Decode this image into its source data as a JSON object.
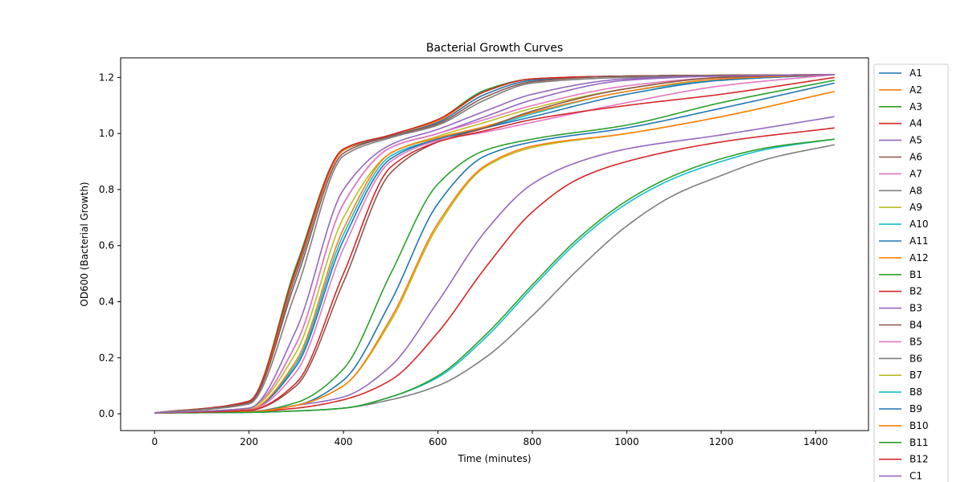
{
  "chart_data": {
    "type": "line",
    "title": "Bacterial Growth Curves",
    "xlabel": "Time (minutes)",
    "ylabel": "OD600 (Bacterial Growth)",
    "xlim": [
      -72,
      1512
    ],
    "ylim": [
      -0.06,
      1.27
    ],
    "xticks": [
      0,
      200,
      400,
      600,
      800,
      1000,
      1200,
      1400
    ],
    "yticks": [
      0.0,
      0.2,
      0.4,
      0.6,
      0.8,
      1.0,
      1.2
    ],
    "grid": false,
    "legend_position": "outside right",
    "x_range": [
      0,
      1440
    ],
    "series": [
      {
        "name": "A1",
        "color": "#1f77b4",
        "points": [
          [
            0,
            0.003
          ],
          [
            200,
            0.04
          ],
          [
            300,
            0.5
          ],
          [
            400,
            0.94
          ],
          [
            500,
            0.99
          ],
          [
            600,
            1.04
          ],
          [
            700,
            1.14
          ],
          [
            800,
            1.19
          ],
          [
            1000,
            1.205
          ],
          [
            1440,
            1.21
          ]
        ]
      },
      {
        "name": "A2",
        "color": "#ff7f0e",
        "points": [
          [
            0,
            0.003
          ],
          [
            200,
            0.04
          ],
          [
            300,
            0.51
          ],
          [
            400,
            0.94
          ],
          [
            500,
            0.995
          ],
          [
            600,
            1.045
          ],
          [
            700,
            1.15
          ],
          [
            800,
            1.195
          ],
          [
            1000,
            1.205
          ],
          [
            1440,
            1.21
          ]
        ]
      },
      {
        "name": "A3",
        "color": "#2ca02c",
        "points": [
          [
            0,
            0.003
          ],
          [
            200,
            0.045
          ],
          [
            300,
            0.53
          ],
          [
            400,
            0.945
          ],
          [
            500,
            0.995
          ],
          [
            600,
            1.05
          ],
          [
            700,
            1.155
          ],
          [
            800,
            1.195
          ],
          [
            1000,
            1.205
          ],
          [
            1440,
            1.21
          ]
        ]
      },
      {
        "name": "A4",
        "color": "#d62728",
        "points": [
          [
            0,
            0.003
          ],
          [
            200,
            0.045
          ],
          [
            300,
            0.52
          ],
          [
            400,
            0.945
          ],
          [
            500,
            0.995
          ],
          [
            600,
            1.05
          ],
          [
            700,
            1.15
          ],
          [
            800,
            1.195
          ],
          [
            1000,
            1.205
          ],
          [
            1440,
            1.21
          ]
        ]
      },
      {
        "name": "A5",
        "color": "#9467bd",
        "points": [
          [
            0,
            0.003
          ],
          [
            200,
            0.02
          ],
          [
            300,
            0.25
          ],
          [
            400,
            0.75
          ],
          [
            500,
            0.95
          ],
          [
            600,
            1.0
          ],
          [
            700,
            1.06
          ],
          [
            800,
            1.12
          ],
          [
            1000,
            1.19
          ],
          [
            1200,
            1.205
          ],
          [
            1440,
            1.21
          ]
        ]
      },
      {
        "name": "A6",
        "color": "#8c564b",
        "points": [
          [
            0,
            0.003
          ],
          [
            200,
            0.04
          ],
          [
            300,
            0.48
          ],
          [
            400,
            0.93
          ],
          [
            500,
            0.99
          ],
          [
            600,
            1.035
          ],
          [
            700,
            1.13
          ],
          [
            800,
            1.185
          ],
          [
            1000,
            1.205
          ],
          [
            1440,
            1.21
          ]
        ]
      },
      {
        "name": "A7",
        "color": "#e377c2",
        "points": [
          [
            0,
            0.003
          ],
          [
            200,
            0.02
          ],
          [
            300,
            0.25
          ],
          [
            400,
            0.75
          ],
          [
            500,
            0.95
          ],
          [
            600,
            1.0
          ],
          [
            700,
            1.05
          ],
          [
            800,
            1.1
          ],
          [
            1000,
            1.17
          ],
          [
            1200,
            1.2
          ],
          [
            1440,
            1.21
          ]
        ]
      },
      {
        "name": "A8",
        "color": "#7f7f7f",
        "points": [
          [
            0,
            0.003
          ],
          [
            200,
            0.035
          ],
          [
            300,
            0.44
          ],
          [
            400,
            0.92
          ],
          [
            500,
            0.985
          ],
          [
            600,
            1.03
          ],
          [
            700,
            1.12
          ],
          [
            800,
            1.18
          ],
          [
            1000,
            1.2
          ],
          [
            1440,
            1.21
          ]
        ]
      },
      {
        "name": "A9",
        "color": "#bcbd22",
        "points": [
          [
            0,
            0.003
          ],
          [
            200,
            0.02
          ],
          [
            300,
            0.22
          ],
          [
            400,
            0.7
          ],
          [
            500,
            0.93
          ],
          [
            600,
            0.99
          ],
          [
            700,
            1.04
          ],
          [
            800,
            1.09
          ],
          [
            1000,
            1.16
          ],
          [
            1200,
            1.2
          ],
          [
            1440,
            1.21
          ]
        ]
      },
      {
        "name": "A10",
        "color": "#17becf",
        "points": [
          [
            0,
            0.003
          ],
          [
            200,
            0.015
          ],
          [
            300,
            0.18
          ],
          [
            400,
            0.64
          ],
          [
            500,
            0.92
          ],
          [
            600,
            0.98
          ],
          [
            700,
            1.02
          ],
          [
            800,
            1.07
          ],
          [
            1000,
            1.15
          ],
          [
            1200,
            1.19
          ],
          [
            1440,
            1.21
          ]
        ]
      },
      {
        "name": "A11",
        "color": "#1f77b4",
        "points": [
          [
            0,
            0.003
          ],
          [
            200,
            0.015
          ],
          [
            300,
            0.17
          ],
          [
            400,
            0.62
          ],
          [
            500,
            0.91
          ],
          [
            600,
            0.98
          ],
          [
            700,
            1.02
          ],
          [
            800,
            1.06
          ],
          [
            1000,
            1.14
          ],
          [
            1200,
            1.19
          ],
          [
            1440,
            1.21
          ]
        ]
      },
      {
        "name": "A12",
        "color": "#ff7f0e",
        "points": [
          [
            0,
            0.003
          ],
          [
            200,
            0.015
          ],
          [
            300,
            0.19
          ],
          [
            400,
            0.66
          ],
          [
            500,
            0.93
          ],
          [
            600,
            0.985
          ],
          [
            700,
            1.025
          ],
          [
            800,
            1.075
          ],
          [
            1000,
            1.15
          ],
          [
            1200,
            1.195
          ],
          [
            1440,
            1.21
          ]
        ]
      },
      {
        "name": "B1",
        "color": "#2ca02c",
        "points": [
          [
            0,
            0.003
          ],
          [
            200,
            0.008
          ],
          [
            300,
            0.04
          ],
          [
            400,
            0.16
          ],
          [
            500,
            0.5
          ],
          [
            600,
            0.82
          ],
          [
            700,
            0.94
          ],
          [
            800,
            0.98
          ],
          [
            1000,
            1.03
          ],
          [
            1200,
            1.11
          ],
          [
            1440,
            1.19
          ]
        ]
      },
      {
        "name": "B2",
        "color": "#d62728",
        "points": [
          [
            0,
            0.003
          ],
          [
            200,
            0.007
          ],
          [
            300,
            0.02
          ],
          [
            400,
            0.05
          ],
          [
            500,
            0.12
          ],
          [
            600,
            0.29
          ],
          [
            700,
            0.52
          ],
          [
            800,
            0.72
          ],
          [
            900,
            0.84
          ],
          [
            1000,
            0.9
          ],
          [
            1200,
            0.97
          ],
          [
            1440,
            1.02
          ]
        ]
      },
      {
        "name": "B3",
        "color": "#9467bd",
        "points": [
          [
            0,
            0.003
          ],
          [
            200,
            0.008
          ],
          [
            300,
            0.03
          ],
          [
            400,
            0.06
          ],
          [
            500,
            0.17
          ],
          [
            600,
            0.4
          ],
          [
            700,
            0.65
          ],
          [
            800,
            0.82
          ],
          [
            900,
            0.9
          ],
          [
            1000,
            0.945
          ],
          [
            1200,
            0.995
          ],
          [
            1440,
            1.06
          ]
        ]
      },
      {
        "name": "B4",
        "color": "#8c564b",
        "points": [
          [
            0,
            0.003
          ],
          [
            200,
            0.012
          ],
          [
            300,
            0.1
          ],
          [
            400,
            0.47
          ],
          [
            500,
            0.86
          ],
          [
            600,
            0.97
          ],
          [
            700,
            1.02
          ],
          [
            800,
            1.08
          ],
          [
            1000,
            1.16
          ],
          [
            1200,
            1.2
          ],
          [
            1440,
            1.21
          ]
        ]
      },
      {
        "name": "B5",
        "color": "#e377c2",
        "points": [
          [
            0,
            0.003
          ],
          [
            200,
            0.013
          ],
          [
            300,
            0.15
          ],
          [
            400,
            0.59
          ],
          [
            500,
            0.9
          ],
          [
            600,
            0.975
          ],
          [
            700,
            1.005
          ],
          [
            800,
            1.04
          ],
          [
            1000,
            1.11
          ],
          [
            1200,
            1.17
          ],
          [
            1440,
            1.21
          ]
        ]
      },
      {
        "name": "B6",
        "color": "#7f7f7f",
        "points": [
          [
            0,
            0.003
          ],
          [
            200,
            0.005
          ],
          [
            300,
            0.01
          ],
          [
            400,
            0.02
          ],
          [
            500,
            0.05
          ],
          [
            600,
            0.1
          ],
          [
            700,
            0.2
          ],
          [
            800,
            0.35
          ],
          [
            900,
            0.52
          ],
          [
            1000,
            0.67
          ],
          [
            1100,
            0.78
          ],
          [
            1200,
            0.85
          ],
          [
            1300,
            0.91
          ],
          [
            1440,
            0.96
          ]
        ]
      },
      {
        "name": "B7",
        "color": "#bcbd22",
        "points": [
          [
            0,
            0.003
          ],
          [
            200,
            0.007
          ],
          [
            300,
            0.03
          ],
          [
            400,
            0.1
          ],
          [
            500,
            0.33
          ],
          [
            600,
            0.67
          ],
          [
            700,
            0.88
          ],
          [
            800,
            0.95
          ],
          [
            1000,
            1.0
          ],
          [
            1200,
            1.06
          ],
          [
            1440,
            1.15
          ]
        ]
      },
      {
        "name": "B8",
        "color": "#17becf",
        "points": [
          [
            0,
            0.003
          ],
          [
            200,
            0.005
          ],
          [
            300,
            0.01
          ],
          [
            400,
            0.02
          ],
          [
            500,
            0.06
          ],
          [
            600,
            0.13
          ],
          [
            700,
            0.27
          ],
          [
            800,
            0.45
          ],
          [
            900,
            0.62
          ],
          [
            1000,
            0.75
          ],
          [
            1100,
            0.84
          ],
          [
            1200,
            0.9
          ],
          [
            1300,
            0.945
          ],
          [
            1440,
            0.98
          ]
        ]
      },
      {
        "name": "B9",
        "color": "#1f77b4",
        "points": [
          [
            0,
            0.003
          ],
          [
            200,
            0.008
          ],
          [
            300,
            0.03
          ],
          [
            400,
            0.12
          ],
          [
            500,
            0.4
          ],
          [
            600,
            0.75
          ],
          [
            700,
            0.92
          ],
          [
            800,
            0.97
          ],
          [
            1000,
            1.02
          ],
          [
            1200,
            1.09
          ],
          [
            1440,
            1.18
          ]
        ]
      },
      {
        "name": "B10",
        "color": "#ff7f0e",
        "points": [
          [
            0,
            0.003
          ],
          [
            200,
            0.007
          ],
          [
            300,
            0.03
          ],
          [
            400,
            0.1
          ],
          [
            500,
            0.34
          ],
          [
            600,
            0.68
          ],
          [
            700,
            0.885
          ],
          [
            800,
            0.955
          ],
          [
            1000,
            1.0
          ],
          [
            1200,
            1.06
          ],
          [
            1440,
            1.15
          ]
        ]
      },
      {
        "name": "B11",
        "color": "#2ca02c",
        "points": [
          [
            0,
            0.003
          ],
          [
            200,
            0.005
          ],
          [
            300,
            0.01
          ],
          [
            400,
            0.02
          ],
          [
            500,
            0.06
          ],
          [
            600,
            0.135
          ],
          [
            700,
            0.28
          ],
          [
            800,
            0.46
          ],
          [
            900,
            0.63
          ],
          [
            1000,
            0.76
          ],
          [
            1100,
            0.85
          ],
          [
            1200,
            0.91
          ],
          [
            1300,
            0.95
          ],
          [
            1440,
            0.98
          ]
        ]
      },
      {
        "name": "B12",
        "color": "#d62728",
        "points": [
          [
            0,
            0.003
          ],
          [
            200,
            0.012
          ],
          [
            300,
            0.11
          ],
          [
            400,
            0.5
          ],
          [
            500,
            0.88
          ],
          [
            600,
            0.97
          ],
          [
            700,
            1.01
          ],
          [
            800,
            1.05
          ],
          [
            1000,
            1.1
          ],
          [
            1200,
            1.14
          ],
          [
            1440,
            1.2
          ]
        ]
      },
      {
        "name": "C1",
        "color": "#9467bd",
        "points": [
          [
            0,
            0.003
          ],
          [
            200,
            0.02
          ],
          [
            300,
            0.3
          ],
          [
            400,
            0.8
          ],
          [
            500,
            0.96
          ],
          [
            600,
            1.015
          ],
          [
            700,
            1.08
          ],
          [
            800,
            1.14
          ],
          [
            1000,
            1.195
          ],
          [
            1200,
            1.205
          ],
          [
            1440,
            1.21
          ]
        ]
      }
    ]
  }
}
